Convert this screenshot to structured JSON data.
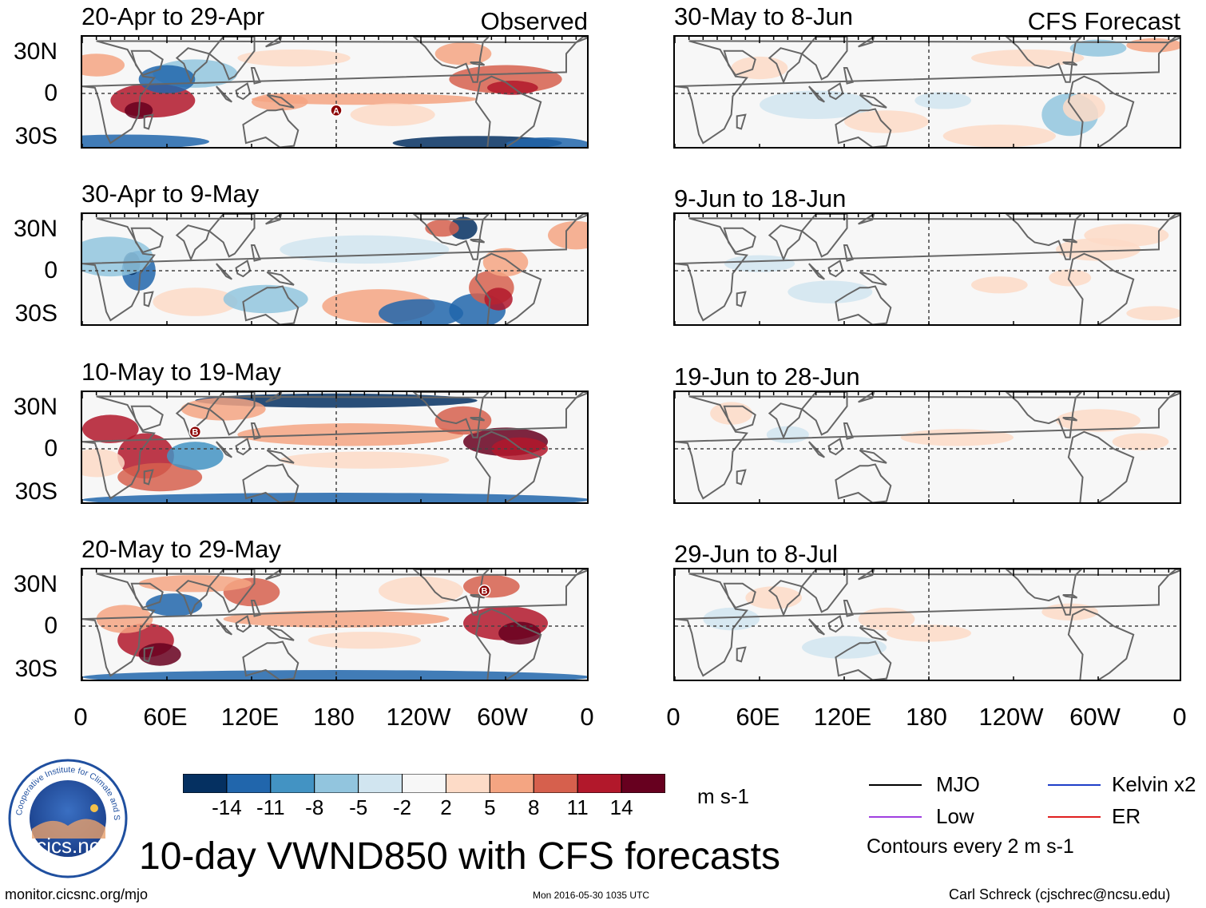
{
  "observed_label": "Observed",
  "forecast_label": "CFS Forecast",
  "observed_panels": [
    {
      "title": "20-Apr to 29-Apr",
      "markers": [
        {
          "label": "A",
          "lon": 180,
          "lat": -12
        }
      ]
    },
    {
      "title": "30-Apr to 9-May",
      "markers": []
    },
    {
      "title": "10-May to 19-May",
      "markers": [
        {
          "label": "B",
          "lon": 80,
          "lat": 12
        }
      ]
    },
    {
      "title": "20-May to 29-May",
      "markers": [
        {
          "label": "B",
          "lon": 285,
          "lat": 25
        }
      ]
    }
  ],
  "forecast_panels": [
    {
      "title": "30-May to 8-Jun"
    },
    {
      "title": "9-Jun to 18-Jun"
    },
    {
      "title": "19-Jun to 28-Jun"
    },
    {
      "title": "29-Jun to 8-Jul"
    }
  ],
  "y_labels": [
    "30N",
    "0",
    "30S"
  ],
  "x_labels": [
    "0",
    "60E",
    "120E",
    "180",
    "120W",
    "60W",
    "0"
  ],
  "colorbar": {
    "colors": [
      "#053061",
      "#2166ac",
      "#4393c3",
      "#92c5de",
      "#d1e5f0",
      "#f7f7f7",
      "#fddbc7",
      "#f4a582",
      "#d6604d",
      "#b2182b",
      "#67001f"
    ],
    "ticks": [
      "-14",
      "-11",
      "-8",
      "-5",
      "-2",
      "2",
      "5",
      "8",
      "11",
      "14"
    ],
    "units": "m s-1"
  },
  "legend": {
    "items": [
      {
        "label": "MJO",
        "color": "#000000"
      },
      {
        "label": "Kelvin x2",
        "color": "#1f3fc8"
      },
      {
        "label": "Low",
        "color": "#a040e0"
      },
      {
        "label": "ER",
        "color": "#e02020"
      }
    ],
    "contours": "Contours every 2 m s-1"
  },
  "logo": {
    "text": "cics.nc",
    "ring_text": "Cooperative Institute for Climate and Satellites"
  },
  "main_title": "10-day VWND850 with CFS forecasts",
  "footer": {
    "left": "monitor.cicsnc.org/mjo",
    "center": "Mon 2016-05-30 1035 UTC",
    "right": "Carl Schreck (cjschrec@ncsu.edu)"
  }
}
